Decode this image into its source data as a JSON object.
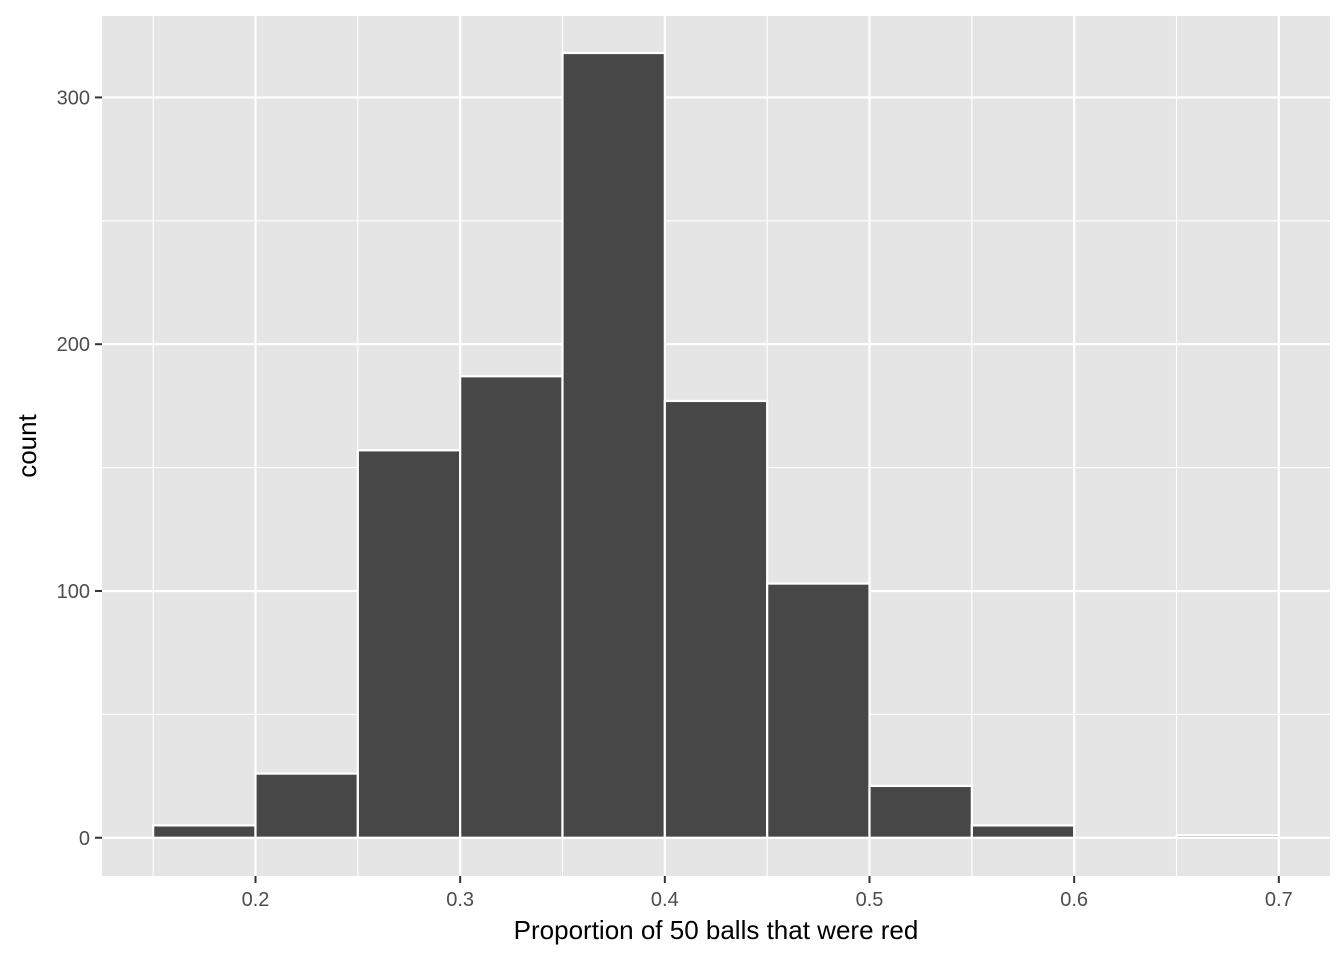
{
  "chart_data": {
    "type": "bar",
    "subtype": "histogram",
    "xlabel": "Proportion of 50 balls that were red",
    "ylabel": "count",
    "xlim": [
      0.125,
      0.725
    ],
    "ylim": [
      -15.5,
      333
    ],
    "x_ticks": [
      0.2,
      0.3,
      0.4,
      0.5,
      0.6,
      0.7
    ],
    "x_tick_labels": [
      "0.2",
      "0.3",
      "0.4",
      "0.5",
      "0.6",
      "0.7"
    ],
    "y_ticks": [
      0,
      100,
      200,
      300
    ],
    "y_tick_labels": [
      "0",
      "100",
      "200",
      "300"
    ],
    "bin_width": 0.05,
    "bins": [
      {
        "xmin": 0.15,
        "xmax": 0.2,
        "count": 5
      },
      {
        "xmin": 0.2,
        "xmax": 0.25,
        "count": 26
      },
      {
        "xmin": 0.25,
        "xmax": 0.3,
        "count": 157
      },
      {
        "xmin": 0.3,
        "xmax": 0.35,
        "count": 187
      },
      {
        "xmin": 0.35,
        "xmax": 0.4,
        "count": 318
      },
      {
        "xmin": 0.4,
        "xmax": 0.45,
        "count": 177
      },
      {
        "xmin": 0.45,
        "xmax": 0.5,
        "count": 103
      },
      {
        "xmin": 0.5,
        "xmax": 0.55,
        "count": 21
      },
      {
        "xmin": 0.55,
        "xmax": 0.6,
        "count": 5
      },
      {
        "xmin": 0.6,
        "xmax": 0.65,
        "count": 0
      },
      {
        "xmin": 0.65,
        "xmax": 0.7,
        "count": 1
      }
    ],
    "grid": true,
    "legend": "none",
    "colors": {
      "panel_background": "#e5e5e5",
      "grid": "#ffffff",
      "bar_fill": "#474747",
      "bar_outline": "#ffffff",
      "tick_mark": "#333333"
    }
  }
}
